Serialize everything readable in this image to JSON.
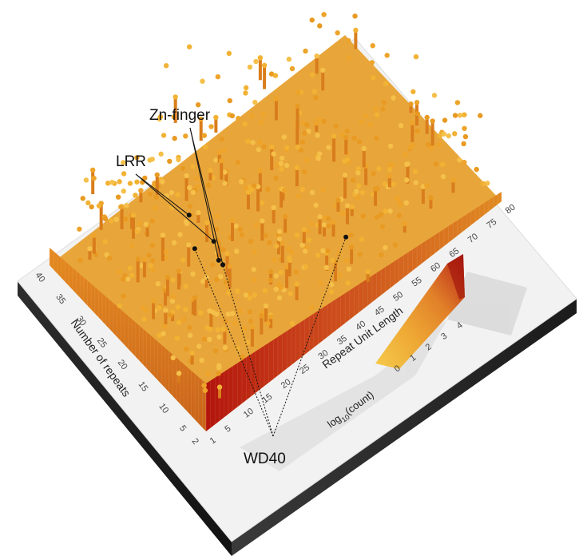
{
  "chart_data": {
    "type": "bar3d",
    "title": "",
    "xlabel": "Repeat Unit Length",
    "ylabel": "Number of repeats",
    "x_ticks": [
      1,
      5,
      10,
      15,
      20,
      25,
      30,
      35,
      40,
      45,
      50,
      55,
      60,
      65,
      70,
      75,
      80
    ],
    "y_ticks": [
      2,
      5,
      10,
      15,
      20,
      25,
      30,
      35,
      40
    ],
    "xlim": [
      1,
      80
    ],
    "ylim": [
      2,
      40
    ],
    "colorbar": {
      "title_prefix": "log",
      "title_sub": "10",
      "title_suffix": "(count)",
      "ticks": [
        0,
        1,
        2,
        3,
        4
      ],
      "colors": [
        "#f5c842",
        "#eea42a",
        "#e07a1e",
        "#cc4a14",
        "#b3140c"
      ]
    },
    "annotations": [
      {
        "label": "Zn-finger",
        "points": [
          {
            "x": 22,
            "y": 17
          },
          {
            "x": 22,
            "y": 18
          }
        ]
      },
      {
        "label": "LRR",
        "points": [
          {
            "x": 24,
            "y": 27
          },
          {
            "x": 24,
            "y": 21
          }
        ]
      },
      {
        "label": "WD40",
        "points": [
          {
            "x": 20,
            "y": 22
          },
          {
            "x": 22,
            "y": 17
          },
          {
            "x": 45,
            "y": 8
          }
        ]
      }
    ]
  }
}
